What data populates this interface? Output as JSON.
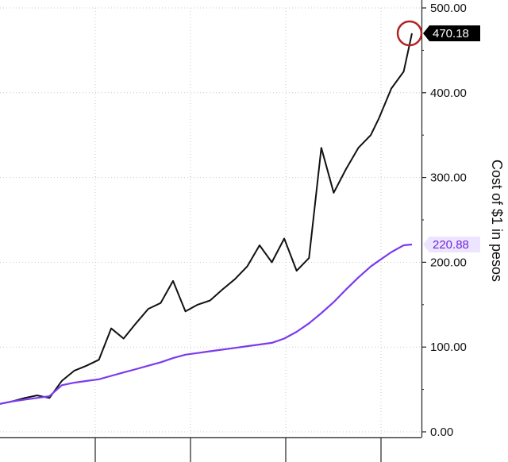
{
  "chart_data": {
    "type": "line",
    "title": "",
    "ylabel": "Cost of $1 in pesos",
    "ylim": [
      0,
      500
    ],
    "yticks": [
      0,
      100,
      200,
      300,
      400,
      500
    ],
    "ytick_labels": [
      "0.00",
      "100.00",
      "200.00",
      "300.00",
      "400.00",
      "500.00"
    ],
    "grid": "on",
    "x": [
      0,
      3,
      6,
      9,
      12,
      15,
      18,
      21,
      24,
      27,
      30,
      33,
      36,
      39,
      42,
      45,
      48,
      51,
      54,
      57,
      60,
      63,
      66,
      69,
      72,
      75,
      78,
      81,
      84,
      87,
      90,
      92,
      95,
      98,
      100
    ],
    "series": [
      {
        "name": "",
        "color": "#111111",
        "values": [
          33,
          36,
          40,
          43,
          40,
          60,
          72,
          78,
          85,
          122,
          110,
          128,
          145,
          152,
          178,
          142,
          150,
          155,
          168,
          180,
          195,
          220,
          200,
          228,
          190,
          205,
          335,
          282,
          310,
          335,
          350,
          370,
          405,
          425,
          470
        ],
        "last_value_label": "470.18"
      },
      {
        "name": "",
        "color": "#7c3aed",
        "values": [
          33,
          36,
          38,
          40,
          42,
          55,
          58,
          60,
          62,
          66,
          70,
          74,
          78,
          82,
          87,
          91,
          93,
          95,
          97,
          99,
          101,
          103,
          105,
          110,
          118,
          128,
          140,
          153,
          168,
          182,
          195,
          202,
          212,
          220,
          221
        ],
        "last_value_label": "220.88"
      }
    ],
    "annotations": [
      {
        "type": "circle",
        "target": "last point of black series",
        "color": "#b22222"
      }
    ]
  }
}
